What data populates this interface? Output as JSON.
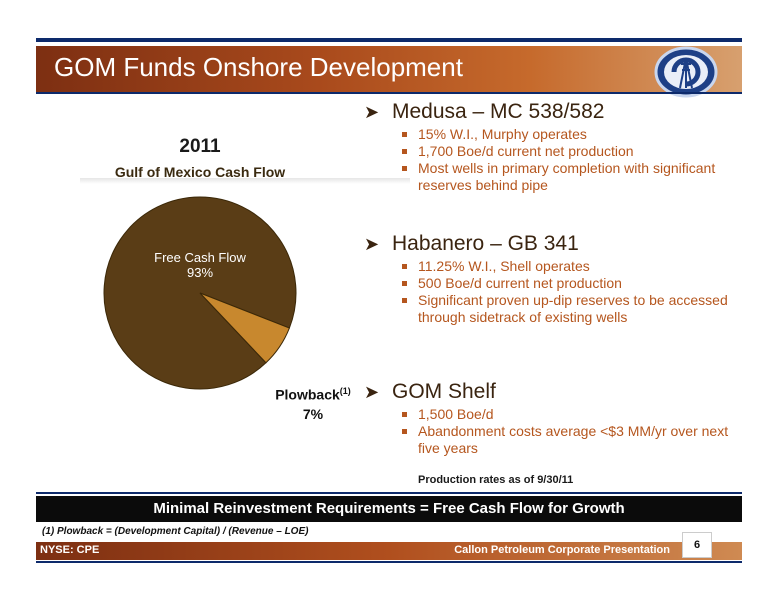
{
  "header": {
    "title": "GOM Funds Onshore Development"
  },
  "chart_data": {
    "type": "pie",
    "title": "2011",
    "subtitle": "Gulf of Mexico Cash Flow",
    "categories": [
      "Free Cash Flow",
      "Plowback"
    ],
    "values": [
      93,
      7
    ],
    "value_labels": [
      "93%",
      "7%"
    ],
    "plowback_footnote_marker": "(1)",
    "colors": [
      "#5a3d16",
      "#c8882e"
    ]
  },
  "sections": [
    {
      "heading": "Medusa – MC 538/582",
      "bullets": [
        "15% W.I., Murphy operates",
        "1,700 Boe/d current net production",
        "Most wells in primary completion with significant reserves behind pipe"
      ]
    },
    {
      "heading": "Habanero – GB 341",
      "bullets": [
        "11.25% W.I., Shell operates",
        "500 Boe/d current net production",
        "Significant proven up-dip reserves  to be accessed through sidetrack of existing wells"
      ]
    },
    {
      "heading": "GOM Shelf",
      "bullets": [
        "1,500 Boe/d",
        "Abandonment costs average <$3 MM/yr over next five years"
      ]
    }
  ],
  "note": "Production rates as of 9/30/11",
  "banner": "Minimal Reinvestment Requirements = Free Cash Flow for Growth",
  "footnote": "(1) Plowback = (Development Capital) / (Revenue – LOE)",
  "footer": {
    "left": "NYSE: CPE",
    "right": "Callon Petroleum Corporate Presentation",
    "page": "6"
  }
}
